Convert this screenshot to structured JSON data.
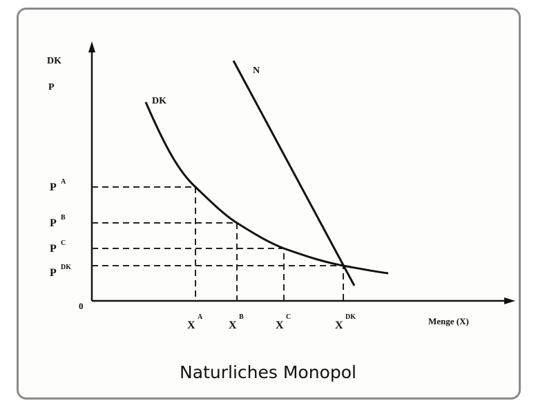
{
  "diagram": {
    "y_axis_label": [
      "DK",
      "P"
    ],
    "origin": "0",
    "x_axis_label": "Menge (X)",
    "curve_labels": {
      "n": "N",
      "dk": "DK"
    },
    "price_labels": [
      {
        "base": "P",
        "sup": "A"
      },
      {
        "base": "P",
        "sup": "B"
      },
      {
        "base": "P",
        "sup": "C"
      },
      {
        "base": "P",
        "sup": "DK"
      }
    ],
    "quantity_labels": [
      {
        "base": "X",
        "sup": "A"
      },
      {
        "base": "X",
        "sup": "B"
      },
      {
        "base": "X",
        "sup": "C"
      },
      {
        "base": "X",
        "sup": "DK"
      }
    ]
  },
  "caption": "Naturliches Monopol"
}
